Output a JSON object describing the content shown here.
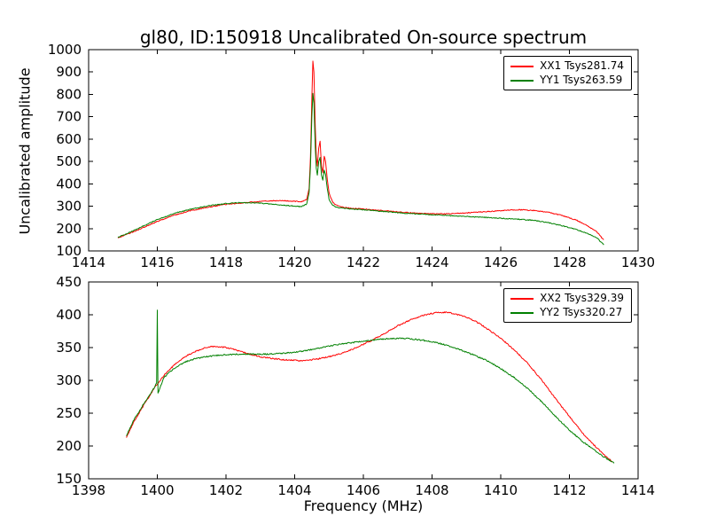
{
  "title": "gl80, ID:150918 Uncalibrated On-source spectrum",
  "xlabel": "Frequency (MHz)",
  "ylabel": "Uncalibrated amplitude",
  "colors": {
    "red": "#ff0000",
    "green": "#008000",
    "axes": "#000000"
  },
  "chart_data": [
    {
      "type": "line",
      "title": "",
      "xlabel": "",
      "ylabel": "Uncalibrated amplitude",
      "xlim": [
        1414,
        1430
      ],
      "ylim": [
        100,
        1000
      ],
      "xticks": [
        1414,
        1416,
        1418,
        1420,
        1422,
        1424,
        1426,
        1428,
        1430
      ],
      "yticks": [
        100,
        200,
        300,
        400,
        500,
        600,
        700,
        800,
        900,
        1000
      ],
      "grid": false,
      "legend_position": "upper right",
      "noise": 4,
      "series": [
        {
          "name": "XX1 Tsys281.74",
          "color": "#ff0000",
          "points": [
            [
              1414.85,
              158
            ],
            [
              1415.0,
              168
            ],
            [
              1415.3,
              185
            ],
            [
              1415.6,
              205
            ],
            [
              1416.0,
              232
            ],
            [
              1416.5,
              260
            ],
            [
              1417.0,
              281
            ],
            [
              1417.5,
              296
            ],
            [
              1418.0,
              308
            ],
            [
              1418.5,
              315
            ],
            [
              1419.0,
              321
            ],
            [
              1419.3,
              324
            ],
            [
              1419.6,
              325
            ],
            [
              1420.0,
              322
            ],
            [
              1420.2,
              320
            ],
            [
              1420.35,
              330
            ],
            [
              1420.42,
              380
            ],
            [
              1420.46,
              520
            ],
            [
              1420.5,
              780
            ],
            [
              1420.53,
              948
            ],
            [
              1420.56,
              900
            ],
            [
              1420.6,
              650
            ],
            [
              1420.63,
              520
            ],
            [
              1420.66,
              480
            ],
            [
              1420.7,
              560
            ],
            [
              1420.74,
              590
            ],
            [
              1420.78,
              480
            ],
            [
              1420.82,
              450
            ],
            [
              1420.86,
              525
            ],
            [
              1420.9,
              500
            ],
            [
              1420.95,
              420
            ],
            [
              1421.0,
              360
            ],
            [
              1421.1,
              320
            ],
            [
              1421.2,
              305
            ],
            [
              1421.4,
              295
            ],
            [
              1421.7,
              290
            ],
            [
              1422.0,
              287
            ],
            [
              1422.5,
              281
            ],
            [
              1423.0,
              275
            ],
            [
              1423.5,
              269
            ],
            [
              1424.0,
              266
            ],
            [
              1424.5,
              266
            ],
            [
              1425.0,
              270
            ],
            [
              1425.5,
              275
            ],
            [
              1426.0,
              280
            ],
            [
              1426.3,
              283
            ],
            [
              1426.6,
              284
            ],
            [
              1427.0,
              280
            ],
            [
              1427.4,
              272
            ],
            [
              1427.8,
              258
            ],
            [
              1428.2,
              238
            ],
            [
              1428.5,
              215
            ],
            [
              1428.8,
              185
            ],
            [
              1429.0,
              148
            ]
          ]
        },
        {
          "name": "YY1 Tsys263.59",
          "color": "#008000",
          "points": [
            [
              1414.85,
              160
            ],
            [
              1415.0,
              170
            ],
            [
              1415.3,
              190
            ],
            [
              1415.6,
              212
            ],
            [
              1416.0,
              240
            ],
            [
              1416.5,
              268
            ],
            [
              1417.0,
              288
            ],
            [
              1417.5,
              302
            ],
            [
              1418.0,
              312
            ],
            [
              1418.4,
              316
            ],
            [
              1418.8,
              315
            ],
            [
              1419.2,
              311
            ],
            [
              1419.6,
              306
            ],
            [
              1420.0,
              300
            ],
            [
              1420.2,
              298
            ],
            [
              1420.35,
              310
            ],
            [
              1420.42,
              360
            ],
            [
              1420.46,
              480
            ],
            [
              1420.5,
              700
            ],
            [
              1420.53,
              805
            ],
            [
              1420.56,
              760
            ],
            [
              1420.6,
              560
            ],
            [
              1420.63,
              470
            ],
            [
              1420.66,
              440
            ],
            [
              1420.7,
              500
            ],
            [
              1420.74,
              520
            ],
            [
              1420.78,
              440
            ],
            [
              1420.82,
              415
            ],
            [
              1420.86,
              460
            ],
            [
              1420.9,
              440
            ],
            [
              1420.95,
              380
            ],
            [
              1421.0,
              330
            ],
            [
              1421.1,
              305
            ],
            [
              1421.2,
              296
            ],
            [
              1421.5,
              290
            ],
            [
              1422.0,
              284
            ],
            [
              1422.5,
              278
            ],
            [
              1423.0,
              271
            ],
            [
              1423.5,
              266
            ],
            [
              1424.0,
              262
            ],
            [
              1424.5,
              258
            ],
            [
              1425.0,
              254
            ],
            [
              1425.5,
              250
            ],
            [
              1426.0,
              246
            ],
            [
              1426.5,
              242
            ],
            [
              1427.0,
              236
            ],
            [
              1427.4,
              226
            ],
            [
              1427.8,
              212
            ],
            [
              1428.2,
              196
            ],
            [
              1428.5,
              180
            ],
            [
              1428.8,
              158
            ],
            [
              1429.0,
              128
            ]
          ]
        }
      ]
    },
    {
      "type": "line",
      "title": "",
      "xlabel": "Frequency (MHz)",
      "ylabel": "",
      "xlim": [
        1398,
        1414
      ],
      "ylim": [
        150,
        450
      ],
      "xticks": [
        1398,
        1400,
        1402,
        1404,
        1406,
        1408,
        1410,
        1412,
        1414
      ],
      "yticks": [
        150,
        200,
        250,
        300,
        350,
        400,
        450
      ],
      "grid": false,
      "legend_position": "upper right",
      "noise": 2,
      "series": [
        {
          "name": "XX2 Tsys329.39",
          "color": "#ff0000",
          "points": [
            [
              1399.1,
              213
            ],
            [
              1399.3,
              235
            ],
            [
              1399.6,
              262
            ],
            [
              1399.9,
              287
            ],
            [
              1400.2,
              308
            ],
            [
              1400.5,
              324
            ],
            [
              1400.8,
              336
            ],
            [
              1401.1,
              344
            ],
            [
              1401.4,
              350
            ],
            [
              1401.7,
              352
            ],
            [
              1402.0,
              350
            ],
            [
              1402.3,
              346
            ],
            [
              1402.6,
              341
            ],
            [
              1403.0,
              336
            ],
            [
              1403.4,
              333
            ],
            [
              1403.8,
              331
            ],
            [
              1404.2,
              330
            ],
            [
              1404.6,
              332
            ],
            [
              1405.0,
              336
            ],
            [
              1405.4,
              342
            ],
            [
              1405.8,
              350
            ],
            [
              1406.2,
              360
            ],
            [
              1406.6,
              371
            ],
            [
              1407.0,
              383
            ],
            [
              1407.4,
              393
            ],
            [
              1407.8,
              400
            ],
            [
              1408.1,
              403
            ],
            [
              1408.4,
              404
            ],
            [
              1408.7,
              401
            ],
            [
              1409.0,
              396
            ],
            [
              1409.3,
              389
            ],
            [
              1409.6,
              379
            ],
            [
              1410.0,
              364
            ],
            [
              1410.4,
              346
            ],
            [
              1410.8,
              325
            ],
            [
              1411.2,
              300
            ],
            [
              1411.6,
              272
            ],
            [
              1412.0,
              245
            ],
            [
              1412.4,
              219
            ],
            [
              1412.8,
              197
            ],
            [
              1413.1,
              182
            ],
            [
              1413.25,
              176
            ]
          ]
        },
        {
          "name": "YY2 Tsys320.27",
          "color": "#008000",
          "points": [
            [
              1399.1,
              216
            ],
            [
              1399.3,
              238
            ],
            [
              1399.6,
              264
            ],
            [
              1399.9,
              288
            ],
            [
              1399.98,
              296
            ],
            [
              1400.0,
              407
            ],
            [
              1400.02,
              281
            ],
            [
              1400.2,
              305
            ],
            [
              1400.5,
              319
            ],
            [
              1400.8,
              328
            ],
            [
              1401.1,
              333
            ],
            [
              1401.4,
              336
            ],
            [
              1401.7,
              338
            ],
            [
              1402.0,
              339
            ],
            [
              1402.4,
              340
            ],
            [
              1402.8,
              340
            ],
            [
              1403.2,
              340
            ],
            [
              1403.6,
              341
            ],
            [
              1404.0,
              343
            ],
            [
              1404.4,
              346
            ],
            [
              1404.8,
              350
            ],
            [
              1405.2,
              354
            ],
            [
              1405.6,
              357
            ],
            [
              1406.0,
              360
            ],
            [
              1406.4,
              362
            ],
            [
              1406.8,
              364
            ],
            [
              1407.2,
              364
            ],
            [
              1407.6,
              362
            ],
            [
              1408.0,
              359
            ],
            [
              1408.4,
              354
            ],
            [
              1408.8,
              347
            ],
            [
              1409.2,
              339
            ],
            [
              1409.6,
              330
            ],
            [
              1410.0,
              318
            ],
            [
              1410.4,
              304
            ],
            [
              1410.8,
              287
            ],
            [
              1411.2,
              267
            ],
            [
              1411.6,
              245
            ],
            [
              1412.0,
              224
            ],
            [
              1412.4,
              206
            ],
            [
              1412.8,
              191
            ],
            [
              1413.1,
              180
            ],
            [
              1413.3,
              174
            ]
          ]
        }
      ]
    }
  ]
}
